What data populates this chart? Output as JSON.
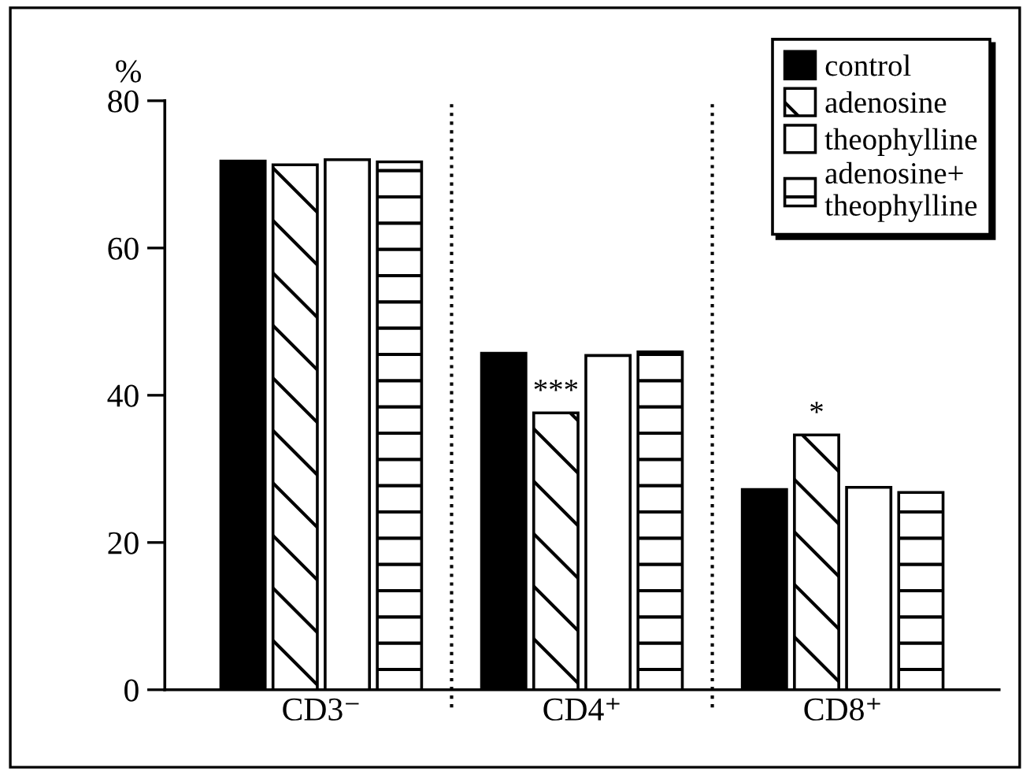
{
  "chart_data": {
    "type": "bar",
    "ylabel": "%",
    "categories": [
      "CD3⁻",
      "CD4⁺",
      "CD8⁺"
    ],
    "series": [
      {
        "name": "control",
        "color": "#000000",
        "values": [
          71.8,
          45.7,
          27.2
        ]
      },
      {
        "name": "adenosine",
        "color": "#ffffff",
        "values": [
          71.3,
          37.6,
          34.6
        ]
      },
      {
        "name": "theophylline",
        "color": "#ffffff",
        "values": [
          72.0,
          45.4,
          27.5
        ]
      },
      {
        "name": "adenosine+\ntheophylline",
        "color": "#ffffff",
        "values": [
          71.7,
          45.9,
          26.8
        ]
      }
    ],
    "ylim": [
      0,
      80
    ],
    "yticks": [
      0,
      20,
      40,
      60,
      80
    ],
    "grid": false,
    "legend": "top right",
    "annotations": [
      {
        "text": "***",
        "x": "CD4⁺",
        "y": 37.6
      },
      {
        "text": "*",
        "x": "CD8⁺",
        "y": 34.6
      }
    ]
  }
}
